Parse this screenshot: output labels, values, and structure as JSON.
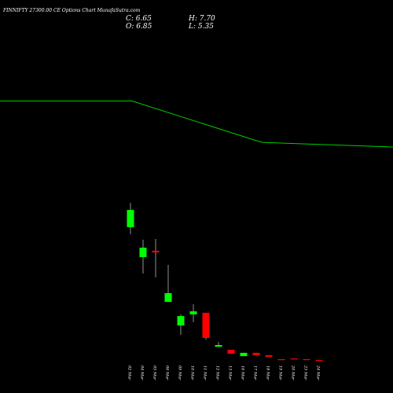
{
  "chart_data": {
    "type": "candlestick",
    "title": "FINNIFTY 27300.00 CE Options Chart MunafaSutra.com",
    "header": {
      "close": "C: 6.65",
      "open": "O: 6.85",
      "high": "H: 7.70",
      "low": "L: 5.35"
    },
    "categories": [
      "02 Mar",
      "04 Mar",
      "05 Mar",
      "06 Mar",
      "09 Mar",
      "10 Mar",
      "11 Mar",
      "12 Mar",
      "13 Mar",
      "16 Mar",
      "17 Mar",
      "18 Mar",
      "19 Mar",
      "20 Mar",
      "23 Mar",
      "24 Mar"
    ],
    "open": [
      570,
      443,
      470,
      253,
      153,
      200,
      207,
      63,
      50,
      23,
      37,
      27,
      10,
      13,
      10,
      6.85
    ],
    "high": [
      673,
      517,
      520,
      410,
      200,
      243,
      207,
      83,
      50,
      37,
      37,
      27,
      10,
      13,
      10,
      7.7
    ],
    "low": [
      540,
      373,
      357,
      253,
      113,
      167,
      93,
      63,
      33,
      23,
      27,
      20,
      9,
      10,
      7,
      5.35
    ],
    "close": [
      643,
      483,
      463,
      290,
      193,
      213,
      100,
      70,
      33,
      37,
      27,
      20,
      9,
      10,
      7,
      6.65
    ],
    "up_color": "#00ff00",
    "down_color": "#ff0000",
    "ylim": [
      0,
      1300
    ],
    "line": {
      "color": "#00cc00",
      "x": [
        0,
        168,
        333,
        500
      ],
      "values": [
        85,
        85,
        71.5,
        70
      ],
      "axis": "y2"
    },
    "y2lim": [
      0,
      100
    ]
  }
}
